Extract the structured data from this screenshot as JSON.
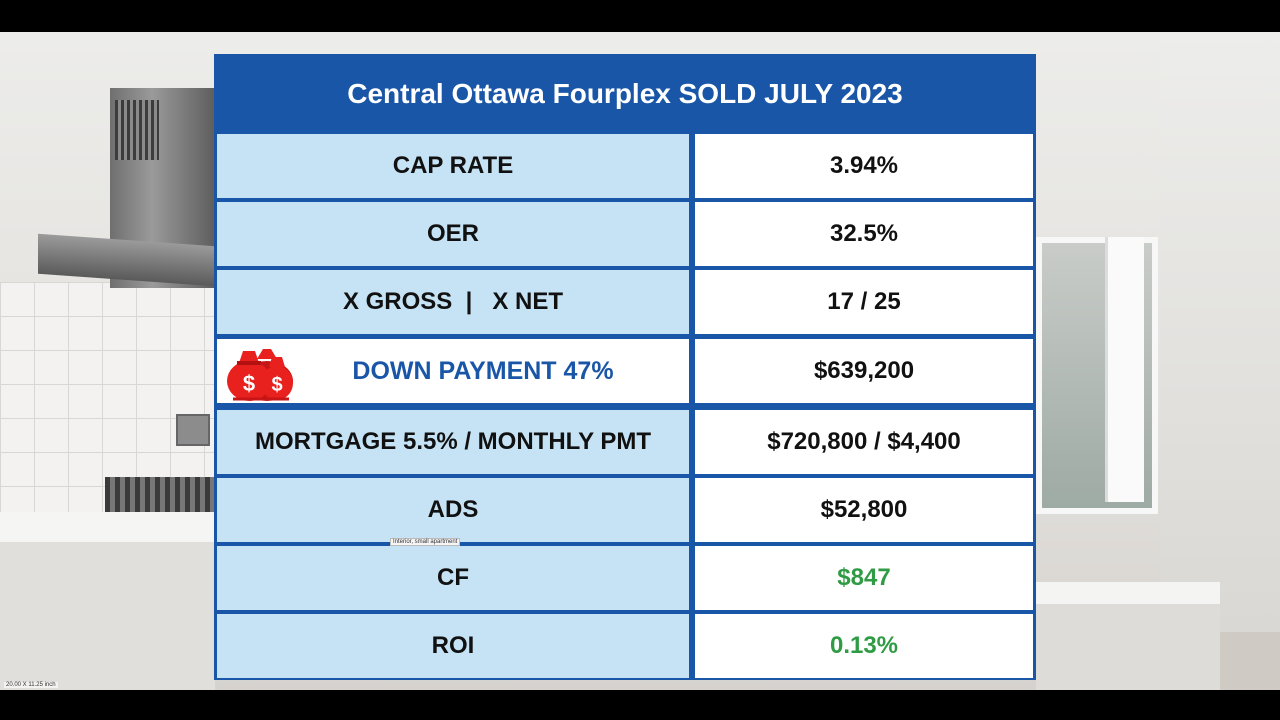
{
  "title": "Central Ottawa Fourplex SOLD JULY 2023",
  "rows": [
    {
      "label": "CAP RATE",
      "value": "3.94%"
    },
    {
      "label": "OER",
      "value": "32.5%"
    },
    {
      "label": "X GROSS  |   X NET",
      "value": "17 / 25"
    },
    {
      "label": "DOWN PAYMENT 47%",
      "value": "$639,200"
    },
    {
      "label": "MORTGAGE 5.5% / MONTHLY PMT",
      "value": "$720,800 / $4,400"
    },
    {
      "label": "ADS",
      "value": "$52,800"
    },
    {
      "label": "CF",
      "value": "$847"
    },
    {
      "label": "ROI",
      "value": "0.13%"
    }
  ],
  "colors": {
    "header_blue": "#1a56a8",
    "label_bg": "#c6e3f5",
    "positive_green": "#2f9b44",
    "icon_red": "#e8201e"
  },
  "icons": {
    "down_payment": "money-bags-icon"
  },
  "tooltip": "Interior, small apartment",
  "caption": "20.00 X 11.25 inch"
}
